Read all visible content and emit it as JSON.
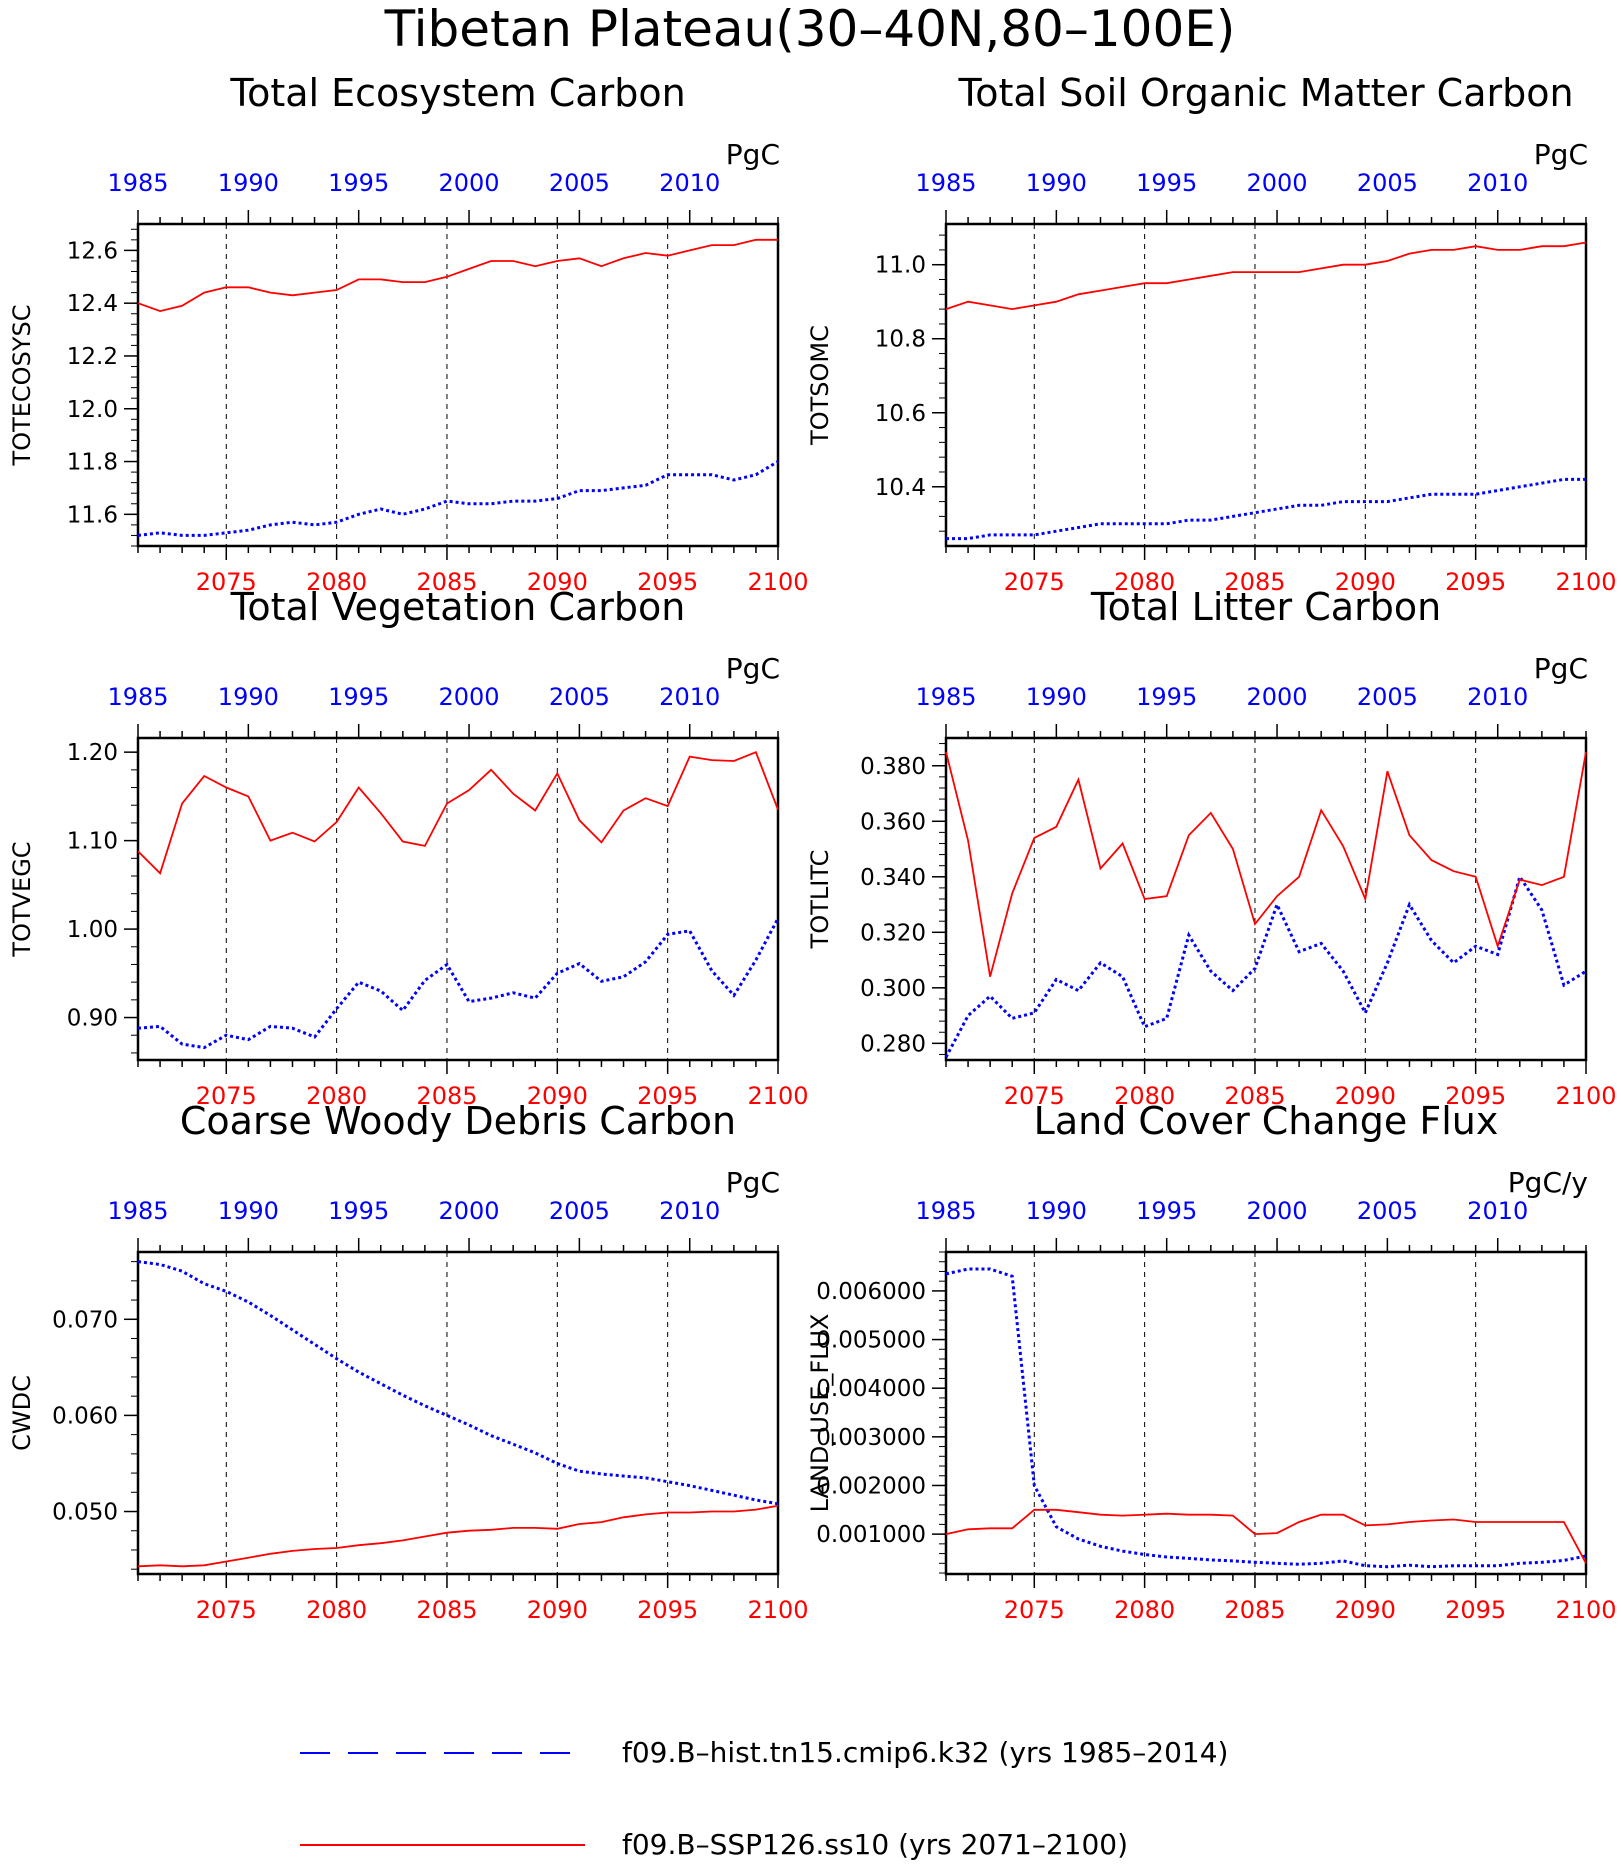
{
  "figure": {
    "title": "Tibetan Plateau(30–40N,80–100E)"
  },
  "colors": {
    "hist": "#0000ff",
    "ssp": "#ff0000",
    "axis": "#000000"
  },
  "legend": {
    "entries": [
      {
        "label": "f09.B–hist.tn15.cmip6.k32 (yrs 1985–2014)",
        "color": "#0000ff",
        "style": "dashed"
      },
      {
        "label": "f09.B–SSP126.ss10 (yrs 2071–2100)",
        "color": "#ff0000",
        "style": "solid"
      }
    ]
  },
  "chart_data": [
    {
      "type": "line",
      "title": "Total Ecosystem Carbon",
      "ylabel": "TOTECOSYSC",
      "units": "PgC",
      "ylim": [
        11.48,
        12.7
      ],
      "yticks": [
        11.6,
        11.8,
        12.0,
        12.2,
        12.4,
        12.6
      ],
      "ytick_labels": [
        "11.6",
        "11.8",
        "12.0",
        "12.2",
        "12.4",
        "12.6"
      ],
      "x_bottom_ticks": [
        "2075",
        "2080",
        "2085",
        "2090",
        "2095",
        "2100"
      ],
      "x_top_ticks": [
        "1985",
        "1990",
        "1995",
        "2000",
        "2005",
        "2010"
      ],
      "series": [
        {
          "name": "f09.B–hist.tn15.cmip6.k32 (yrs 1985–2014)",
          "years": [
            1985,
            1986,
            1987,
            1988,
            1989,
            1990,
            1991,
            1992,
            1993,
            1994,
            1995,
            1996,
            1997,
            1998,
            1999,
            2000,
            2001,
            2002,
            2003,
            2004,
            2005,
            2006,
            2007,
            2008,
            2009,
            2010,
            2011,
            2012,
            2013,
            2014
          ],
          "values": [
            11.52,
            11.53,
            11.52,
            11.52,
            11.53,
            11.54,
            11.56,
            11.57,
            11.56,
            11.57,
            11.6,
            11.62,
            11.6,
            11.62,
            11.65,
            11.64,
            11.64,
            11.65,
            11.65,
            11.66,
            11.69,
            11.69,
            11.7,
            11.71,
            11.75,
            11.75,
            11.75,
            11.73,
            11.75,
            11.8
          ]
        },
        {
          "name": "f09.B–SSP126.ss10 (yrs 2071–2100)",
          "years": [
            2071,
            2072,
            2073,
            2074,
            2075,
            2076,
            2077,
            2078,
            2079,
            2080,
            2081,
            2082,
            2083,
            2084,
            2085,
            2086,
            2087,
            2088,
            2089,
            2090,
            2091,
            2092,
            2093,
            2094,
            2095,
            2096,
            2097,
            2098,
            2099,
            2100
          ],
          "values": [
            12.4,
            12.37,
            12.39,
            12.44,
            12.46,
            12.46,
            12.44,
            12.43,
            12.44,
            12.45,
            12.49,
            12.49,
            12.48,
            12.48,
            12.5,
            12.53,
            12.56,
            12.56,
            12.54,
            12.56,
            12.57,
            12.54,
            12.57,
            12.59,
            12.58,
            12.6,
            12.62,
            12.62,
            12.64,
            12.64
          ]
        }
      ]
    },
    {
      "type": "line",
      "title": "Total Soil Organic Matter Carbon",
      "ylabel": "TOTSOMC",
      "units": "PgC",
      "ylim": [
        10.24,
        11.11
      ],
      "yticks": [
        10.4,
        10.6,
        10.8,
        11.0
      ],
      "ytick_labels": [
        "10.4",
        "10.6",
        "10.8",
        "11.0"
      ],
      "x_bottom_ticks": [
        "2075",
        "2080",
        "2085",
        "2090",
        "2095",
        "2100"
      ],
      "x_top_ticks": [
        "1985",
        "1990",
        "1995",
        "2000",
        "2005",
        "2010"
      ],
      "series": [
        {
          "name": "f09.B–hist.tn15.cmip6.k32 (yrs 1985–2014)",
          "years": [
            1985,
            1986,
            1987,
            1988,
            1989,
            1990,
            1991,
            1992,
            1993,
            1994,
            1995,
            1996,
            1997,
            1998,
            1999,
            2000,
            2001,
            2002,
            2003,
            2004,
            2005,
            2006,
            2007,
            2008,
            2009,
            2010,
            2011,
            2012,
            2013,
            2014
          ],
          "values": [
            10.26,
            10.26,
            10.27,
            10.27,
            10.27,
            10.28,
            10.29,
            10.3,
            10.3,
            10.3,
            10.3,
            10.31,
            10.31,
            10.32,
            10.33,
            10.34,
            10.35,
            10.35,
            10.36,
            10.36,
            10.36,
            10.37,
            10.38,
            10.38,
            10.38,
            10.39,
            10.4,
            10.41,
            10.42,
            10.42
          ]
        },
        {
          "name": "f09.B–SSP126.ss10 (yrs 2071–2100)",
          "years": [
            2071,
            2072,
            2073,
            2074,
            2075,
            2076,
            2077,
            2078,
            2079,
            2080,
            2081,
            2082,
            2083,
            2084,
            2085,
            2086,
            2087,
            2088,
            2089,
            2090,
            2091,
            2092,
            2093,
            2094,
            2095,
            2096,
            2097,
            2098,
            2099,
            2100
          ],
          "values": [
            10.88,
            10.9,
            10.89,
            10.88,
            10.89,
            10.9,
            10.92,
            10.93,
            10.94,
            10.95,
            10.95,
            10.96,
            10.97,
            10.98,
            10.98,
            10.98,
            10.98,
            10.99,
            11.0,
            11.0,
            11.01,
            11.03,
            11.04,
            11.04,
            11.05,
            11.04,
            11.04,
            11.05,
            11.05,
            11.06
          ]
        }
      ]
    },
    {
      "type": "line",
      "title": "Total Vegetation Carbon",
      "ylabel": "TOTVEGC",
      "units": "PgC",
      "ylim": [
        0.852,
        1.216
      ],
      "yticks": [
        0.9,
        1.0,
        1.1,
        1.2
      ],
      "ytick_labels": [
        "0.90",
        "1.00",
        "1.10",
        "1.20"
      ],
      "x_bottom_ticks": [
        "2075",
        "2080",
        "2085",
        "2090",
        "2095",
        "2100"
      ],
      "x_top_ticks": [
        "1985",
        "1990",
        "1995",
        "2000",
        "2005",
        "2010"
      ],
      "series": [
        {
          "name": "f09.B–hist.tn15.cmip6.k32 (yrs 1985–2014)",
          "years": [
            1985,
            1986,
            1987,
            1988,
            1989,
            1990,
            1991,
            1992,
            1993,
            1994,
            1995,
            1996,
            1997,
            1998,
            1999,
            2000,
            2001,
            2002,
            2003,
            2004,
            2005,
            2006,
            2007,
            2008,
            2009,
            2010,
            2011,
            2012,
            2013,
            2014
          ],
          "values": [
            0.888,
            0.89,
            0.87,
            0.866,
            0.88,
            0.875,
            0.89,
            0.888,
            0.878,
            0.91,
            0.94,
            0.93,
            0.908,
            0.942,
            0.96,
            0.918,
            0.922,
            0.928,
            0.922,
            0.95,
            0.961,
            0.941,
            0.946,
            0.963,
            0.994,
            0.998,
            0.953,
            0.925,
            0.965,
            1.012
          ]
        },
        {
          "name": "f09.B–SSP126.ss10 (yrs 2071–2100)",
          "years": [
            2071,
            2072,
            2073,
            2074,
            2075,
            2076,
            2077,
            2078,
            2079,
            2080,
            2081,
            2082,
            2083,
            2084,
            2085,
            2086,
            2087,
            2088,
            2089,
            2090,
            2091,
            2092,
            2093,
            2094,
            2095,
            2096,
            2097,
            2098,
            2099,
            2100
          ],
          "values": [
            1.088,
            1.063,
            1.142,
            1.173,
            1.16,
            1.15,
            1.1,
            1.109,
            1.099,
            1.121,
            1.16,
            1.131,
            1.099,
            1.094,
            1.142,
            1.157,
            1.18,
            1.153,
            1.134,
            1.176,
            1.123,
            1.098,
            1.134,
            1.148,
            1.139,
            1.195,
            1.191,
            1.19,
            1.2,
            1.135
          ]
        }
      ]
    },
    {
      "type": "line",
      "title": "Total Litter Carbon",
      "ylabel": "TOTLITC",
      "units": "PgC",
      "ylim": [
        0.274,
        0.39
      ],
      "yticks": [
        0.28,
        0.3,
        0.32,
        0.34,
        0.36,
        0.38
      ],
      "ytick_labels": [
        "0.280",
        "0.300",
        "0.320",
        "0.340",
        "0.360",
        "0.380"
      ],
      "x_bottom_ticks": [
        "2075",
        "2080",
        "2085",
        "2090",
        "2095",
        "2100"
      ],
      "x_top_ticks": [
        "1985",
        "1990",
        "1995",
        "2000",
        "2005",
        "2010"
      ],
      "series": [
        {
          "name": "f09.B–hist.tn15.cmip6.k32 (yrs 1985–2014)",
          "years": [
            1985,
            1986,
            1987,
            1988,
            1989,
            1990,
            1991,
            1992,
            1993,
            1994,
            1995,
            1996,
            1997,
            1998,
            1999,
            2000,
            2001,
            2002,
            2003,
            2004,
            2005,
            2006,
            2007,
            2008,
            2009,
            2010,
            2011,
            2012,
            2013,
            2014
          ],
          "values": [
            0.275,
            0.29,
            0.297,
            0.289,
            0.291,
            0.303,
            0.299,
            0.309,
            0.304,
            0.286,
            0.289,
            0.319,
            0.306,
            0.299,
            0.307,
            0.33,
            0.313,
            0.316,
            0.306,
            0.291,
            0.309,
            0.33,
            0.317,
            0.309,
            0.315,
            0.312,
            0.34,
            0.328,
            0.301,
            0.306
          ]
        },
        {
          "name": "f09.B–SSP126.ss10 (yrs 2071–2100)",
          "years": [
            2071,
            2072,
            2073,
            2074,
            2075,
            2076,
            2077,
            2078,
            2079,
            2080,
            2081,
            2082,
            2083,
            2084,
            2085,
            2086,
            2087,
            2088,
            2089,
            2090,
            2091,
            2092,
            2093,
            2094,
            2095,
            2096,
            2097,
            2098,
            2099,
            2100
          ],
          "values": [
            0.385,
            0.353,
            0.304,
            0.334,
            0.354,
            0.358,
            0.375,
            0.343,
            0.352,
            0.332,
            0.333,
            0.355,
            0.363,
            0.35,
            0.323,
            0.333,
            0.34,
            0.364,
            0.351,
            0.332,
            0.378,
            0.355,
            0.346,
            0.342,
            0.34,
            0.315,
            0.339,
            0.337,
            0.34,
            0.385
          ]
        }
      ]
    },
    {
      "type": "line",
      "title": "Coarse Woody Debris Carbon",
      "ylabel": "CWDC",
      "units": "PgC",
      "ylim": [
        0.0435,
        0.077
      ],
      "yticks": [
        0.05,
        0.06,
        0.07
      ],
      "ytick_labels": [
        "0.050",
        "0.060",
        "0.070"
      ],
      "x_bottom_ticks": [
        "2075",
        "2080",
        "2085",
        "2090",
        "2095",
        "2100"
      ],
      "x_top_ticks": [
        "1985",
        "1990",
        "1995",
        "2000",
        "2005",
        "2010"
      ],
      "series": [
        {
          "name": "f09.B–hist.tn15.cmip6.k32 (yrs 1985–2014)",
          "years": [
            1985,
            1986,
            1987,
            1988,
            1989,
            1990,
            1991,
            1992,
            1993,
            1994,
            1995,
            1996,
            1997,
            1998,
            1999,
            2000,
            2001,
            2002,
            2003,
            2004,
            2005,
            2006,
            2007,
            2008,
            2009,
            2010,
            2011,
            2012,
            2013,
            2014
          ],
          "values": [
            0.076,
            0.0757,
            0.075,
            0.0737,
            0.0729,
            0.0718,
            0.0704,
            0.0689,
            0.0674,
            0.0659,
            0.0645,
            0.0633,
            0.0621,
            0.061,
            0.06,
            0.059,
            0.0579,
            0.057,
            0.0561,
            0.055,
            0.0542,
            0.0539,
            0.0537,
            0.0535,
            0.0531,
            0.0527,
            0.0522,
            0.0517,
            0.0512,
            0.0508
          ]
        },
        {
          "name": "f09.B–SSP126.ss10 (yrs 2071–2100)",
          "years": [
            2071,
            2072,
            2073,
            2074,
            2075,
            2076,
            2077,
            2078,
            2079,
            2080,
            2081,
            2082,
            2083,
            2084,
            2085,
            2086,
            2087,
            2088,
            2089,
            2090,
            2091,
            2092,
            2093,
            2094,
            2095,
            2096,
            2097,
            2098,
            2099,
            2100
          ],
          "values": [
            0.0443,
            0.0444,
            0.0443,
            0.0444,
            0.0448,
            0.0452,
            0.0456,
            0.0459,
            0.0461,
            0.0462,
            0.0465,
            0.0467,
            0.047,
            0.0474,
            0.0478,
            0.048,
            0.0481,
            0.0483,
            0.0483,
            0.0482,
            0.0487,
            0.0489,
            0.0494,
            0.0497,
            0.0499,
            0.0499,
            0.05,
            0.05,
            0.0502,
            0.0506
          ]
        }
      ]
    },
    {
      "type": "line",
      "title": "Land Cover Change Flux",
      "ylabel": "LAND_USE_FLUX",
      "units": "PgC/y",
      "ylim": [
        0.00018,
        0.0068
      ],
      "yticks": [
        0.001,
        0.002,
        0.003,
        0.004,
        0.005,
        0.006
      ],
      "ytick_labels": [
        "0.001000",
        "0.002000",
        "0.003000",
        "0.004000",
        "0.005000",
        "0.006000"
      ],
      "x_bottom_ticks": [
        "2075",
        "2080",
        "2085",
        "2090",
        "2095",
        "2100"
      ],
      "x_top_ticks": [
        "1985",
        "1990",
        "1995",
        "2000",
        "2005",
        "2010"
      ],
      "series": [
        {
          "name": "f09.B–hist.tn15.cmip6.k32 (yrs 1985–2014)",
          "years": [
            1985,
            1986,
            1987,
            1988,
            1989,
            1990,
            1991,
            1992,
            1993,
            1994,
            1995,
            1996,
            1997,
            1998,
            1999,
            2000,
            2001,
            2002,
            2003,
            2004,
            2005,
            2006,
            2007,
            2008,
            2009,
            2010,
            2011,
            2012,
            2013,
            2014
          ],
          "values": [
            0.00635,
            0.00645,
            0.00645,
            0.0063,
            0.002,
            0.00115,
            0.0009,
            0.00075,
            0.00065,
            0.00058,
            0.00053,
            0.0005,
            0.00047,
            0.00045,
            0.00042,
            0.0004,
            0.00038,
            0.0004,
            0.00045,
            0.00035,
            0.00033,
            0.00036,
            0.00033,
            0.00035,
            0.00035,
            0.00035,
            0.0004,
            0.00042,
            0.00046,
            0.00055
          ]
        },
        {
          "name": "f09.B–SSP126.ss10 (yrs 2071–2100)",
          "years": [
            2071,
            2072,
            2073,
            2074,
            2075,
            2076,
            2077,
            2078,
            2079,
            2080,
            2081,
            2082,
            2083,
            2084,
            2085,
            2086,
            2087,
            2088,
            2089,
            2090,
            2091,
            2092,
            2093,
            2094,
            2095,
            2096,
            2097,
            2098,
            2099,
            2100
          ],
          "values": [
            0.001,
            0.0011,
            0.00112,
            0.00112,
            0.0015,
            0.0015,
            0.00145,
            0.0014,
            0.00138,
            0.0014,
            0.00142,
            0.0014,
            0.0014,
            0.00138,
            0.001,
            0.00102,
            0.00125,
            0.0014,
            0.0014,
            0.00118,
            0.0012,
            0.00125,
            0.00128,
            0.0013,
            0.00125,
            0.00125,
            0.00125,
            0.00125,
            0.00125,
            0.0004
          ]
        }
      ]
    }
  ]
}
